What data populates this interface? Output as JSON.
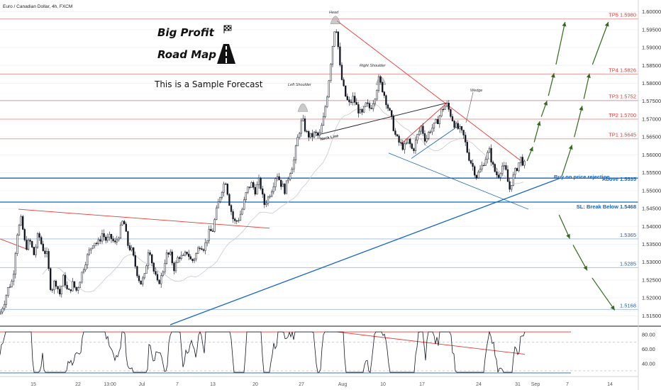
{
  "title": "Euro / Canadian Dollar, 4h, FXCM",
  "headline": "Big Profit",
  "subheadline": "Road Map",
  "tagline": "This is a Sample Forecast",
  "chart_data": {
    "type": "candlestick",
    "symbol": "Euro / Canadian Dollar, 4h, FXCM",
    "ylim": [
      1.5125,
      1.6025
    ],
    "y_ticks": [
      "1.60000",
      "1.59500",
      "1.59000",
      "1.58500",
      "1.58000",
      "1.57500",
      "1.57000",
      "1.56500",
      "1.56000",
      "1.55500",
      "1.55000",
      "1.54500",
      "1.54000",
      "1.53500",
      "1.53000",
      "1.52500",
      "1.52000",
      "1.51500"
    ],
    "x_ticks": [
      "15",
      "22",
      "13:00",
      "Jul",
      "7",
      "13",
      "20",
      "27",
      "Aug",
      "10",
      "17",
      "24",
      "31",
      "Sep",
      "7",
      "14"
    ],
    "price_path": [
      [
        0,
        1.5155
      ],
      [
        6,
        1.519
      ],
      [
        12,
        1.523
      ],
      [
        18,
        1.525
      ],
      [
        24,
        1.538
      ],
      [
        30,
        1.542
      ],
      [
        36,
        1.534
      ],
      [
        42,
        1.536
      ],
      [
        48,
        1.532
      ],
      [
        54,
        1.538
      ],
      [
        60,
        1.534
      ],
      [
        66,
        1.532
      ],
      [
        72,
        1.522
      ],
      [
        78,
        1.525
      ],
      [
        84,
        1.521
      ],
      [
        90,
        1.526
      ],
      [
        96,
        1.521
      ],
      [
        102,
        1.524
      ],
      [
        108,
        1.522
      ],
      [
        114,
        1.526
      ],
      [
        120,
        1.53
      ],
      [
        126,
        1.533
      ],
      [
        132,
        1.536
      ],
      [
        138,
        1.535
      ],
      [
        144,
        1.538
      ],
      [
        150,
        1.536
      ],
      [
        156,
        1.537
      ],
      [
        162,
        1.535
      ],
      [
        168,
        1.538
      ],
      [
        174,
        1.542
      ],
      [
        180,
        1.535
      ],
      [
        186,
        1.533
      ],
      [
        192,
        1.528
      ],
      [
        198,
        1.524
      ],
      [
        204,
        1.526
      ],
      [
        210,
        1.535
      ],
      [
        216,
        1.528
      ],
      [
        222,
        1.524
      ],
      [
        228,
        1.526
      ],
      [
        234,
        1.532
      ],
      [
        240,
        1.532
      ],
      [
        246,
        1.528
      ],
      [
        252,
        1.532
      ],
      [
        258,
        1.531
      ],
      [
        264,
        1.533
      ],
      [
        270,
        1.53
      ],
      [
        276,
        1.532
      ],
      [
        282,
        1.535
      ],
      [
        288,
        1.534
      ],
      [
        294,
        1.538
      ],
      [
        300,
        1.539
      ],
      [
        306,
        1.545
      ],
      [
        312,
        1.55
      ],
      [
        318,
        1.553
      ],
      [
        324,
        1.546
      ],
      [
        330,
        1.541
      ],
      [
        336,
        1.542
      ],
      [
        342,
        1.545
      ],
      [
        348,
        1.55
      ],
      [
        354,
        1.552
      ],
      [
        360,
        1.55
      ],
      [
        366,
        1.553
      ],
      [
        372,
        1.546
      ],
      [
        378,
        1.548
      ],
      [
        384,
        1.551
      ],
      [
        390,
        1.555
      ],
      [
        396,
        1.552
      ],
      [
        402,
        1.55
      ],
      [
        408,
        1.555
      ],
      [
        414,
        1.558
      ],
      [
        420,
        1.565
      ],
      [
        426,
        1.57
      ],
      [
        432,
        1.566
      ],
      [
        438,
        1.565
      ],
      [
        444,
        1.566
      ],
      [
        450,
        1.565
      ],
      [
        456,
        1.57
      ],
      [
        462,
        1.578
      ],
      [
        468,
        1.589
      ],
      [
        473,
        1.5975
      ],
      [
        476,
        1.592
      ],
      [
        480,
        1.583
      ],
      [
        486,
        1.577
      ],
      [
        492,
        1.574
      ],
      [
        498,
        1.576
      ],
      [
        504,
        1.573
      ],
      [
        510,
        1.571
      ],
      [
        516,
        1.574
      ],
      [
        522,
        1.573
      ],
      [
        528,
        1.576
      ],
      [
        534,
        1.581
      ],
      [
        540,
        1.578
      ],
      [
        546,
        1.574
      ],
      [
        552,
        1.57
      ],
      [
        558,
        1.565
      ],
      [
        564,
        1.563
      ],
      [
        570,
        1.562
      ],
      [
        576,
        1.564
      ],
      [
        582,
        1.561
      ],
      [
        588,
        1.565
      ],
      [
        594,
        1.568
      ],
      [
        600,
        1.564
      ],
      [
        606,
        1.567
      ],
      [
        612,
        1.568
      ],
      [
        618,
        1.57
      ],
      [
        624,
        1.573
      ],
      [
        630,
        1.574
      ],
      [
        636,
        1.571
      ],
      [
        642,
        1.568
      ],
      [
        648,
        1.567
      ],
      [
        654,
        1.565
      ],
      [
        660,
        1.56
      ],
      [
        666,
        1.557
      ],
      [
        672,
        1.554
      ],
      [
        678,
        1.556
      ],
      [
        684,
        1.559
      ],
      [
        690,
        1.561
      ],
      [
        696,
        1.556
      ],
      [
        702,
        1.554
      ],
      [
        708,
        1.557
      ],
      [
        714,
        1.555
      ],
      [
        718,
        1.55
      ],
      [
        722,
        1.553
      ],
      [
        728,
        1.556
      ],
      [
        734,
        1.559
      ],
      [
        740,
        1.557
      ]
    ],
    "resistance_levels": [
      {
        "label": "TP5 1.5980",
        "value": 1.598
      },
      {
        "label": "TP4 1.5826",
        "value": 1.5826
      },
      {
        "label": "TP3 1.5752",
        "value": 1.5752
      },
      {
        "label": "TP2 1.5700",
        "value": 1.57
      },
      {
        "label": "TP1 1.5645",
        "value": 1.5645
      }
    ],
    "support_levels": [
      {
        "label": "Above 1.5535",
        "value": 1.5535
      },
      {
        "label": "SL: Break Below 1.5468",
        "value": 1.5468
      },
      {
        "label": "1.5365",
        "value": 1.5365
      },
      {
        "label": "1.5285",
        "value": 1.5285
      },
      {
        "label": "1.5168",
        "value": 1.5168
      }
    ],
    "entry_note": "Buy on price rejection",
    "pattern_labels": [
      "Head",
      "Left Shoulder",
      "Right Shoulder",
      "Neck Line",
      "Wedge"
    ],
    "rsi": {
      "ylim": [
        25,
        88
      ],
      "ticks": [
        "80.00",
        "60.00",
        "40.00"
      ],
      "levels": [
        70,
        30
      ]
    }
  }
}
